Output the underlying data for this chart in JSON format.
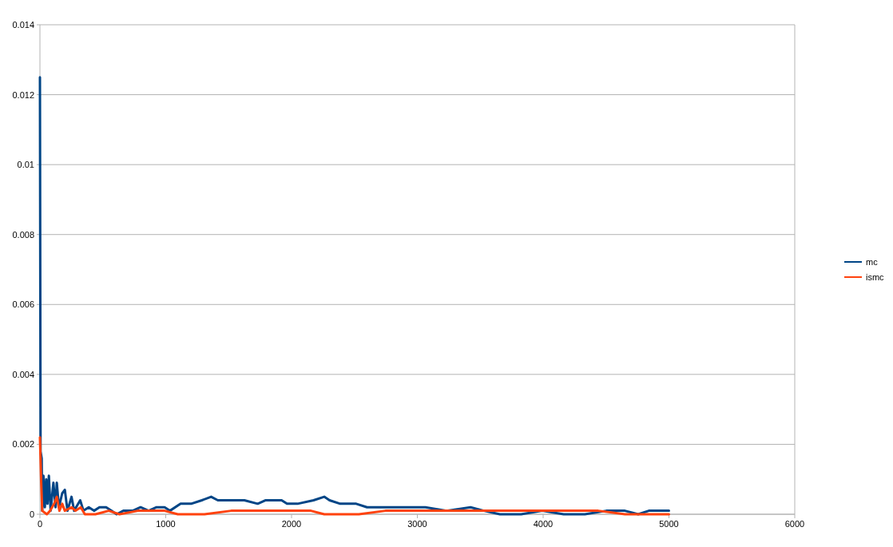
{
  "chart_data": {
    "type": "line",
    "xlim": [
      0,
      6000
    ],
    "xticks": [
      0,
      1000,
      2000,
      3000,
      4000,
      5000,
      6000
    ],
    "ylim": [
      0,
      0.014
    ],
    "yticks": [
      0,
      0.002,
      0.004,
      0.006,
      0.008,
      0.01,
      0.012,
      0.014
    ],
    "grid": "y",
    "legend": "right",
    "marker": "none",
    "line_style": "solid",
    "series": [
      {
        "name": "mc",
        "color": "#004586",
        "x": [
          0,
          5,
          14,
          18,
          28,
          39,
          50,
          60,
          71,
          85,
          107,
          124,
          134,
          151,
          177,
          198,
          219,
          251,
          272,
          320,
          346,
          388,
          430,
          473,
          526,
          568,
          610,
          663,
          737,
          800,
          864,
          927,
          991,
          1033,
          1118,
          1202,
          1287,
          1361,
          1414,
          1520,
          1625,
          1731,
          1795,
          1921,
          1964,
          2048,
          2175,
          2260,
          2302,
          2387,
          2514,
          2600,
          2768,
          2937,
          3064,
          3233,
          3423,
          3529,
          3656,
          3825,
          3993,
          4163,
          4332,
          4502,
          4650,
          4756,
          4840,
          5000
        ],
        "values": [
          0.0125,
          0.0018,
          0.0016,
          0.0001,
          0.0011,
          0.0002,
          0.001,
          0.0003,
          0.0011,
          0.0001,
          0.0009,
          0.0002,
          0.0009,
          0.0002,
          0.0006,
          0.0007,
          0.0001,
          0.0005,
          0.0001,
          0.0004,
          0.0001,
          0.0002,
          0.0001,
          0.0002,
          0.0002,
          0.0001,
          0,
          0.0001,
          0.0001,
          0.0002,
          0.0001,
          0.0002,
          0.0002,
          0.0001,
          0.0003,
          0.0003,
          0.0004,
          0.0005,
          0.0004,
          0.0004,
          0.0004,
          0.0003,
          0.0004,
          0.0004,
          0.0003,
          0.0003,
          0.0004,
          0.0005,
          0.0004,
          0.0003,
          0.0003,
          0.0002,
          0.0002,
          0.0002,
          0.0002,
          0.0001,
          0.0002,
          0.0001,
          0,
          0,
          0.0001,
          0,
          0,
          0.0001,
          0.0001,
          0,
          0.0001,
          0.0001
        ]
      },
      {
        "name": "ismc",
        "color": "#ff420e",
        "x": [
          0,
          10,
          18,
          55,
          81,
          113,
          134,
          155,
          177,
          198,
          251,
          283,
          325,
          357,
          441,
          547,
          632,
          779,
          885,
          991,
          1096,
          1308,
          1520,
          1731,
          1942,
          2154,
          2260,
          2345,
          2535,
          2746,
          2958,
          3169,
          3381,
          3593,
          3804,
          4014,
          4226,
          4438,
          4650,
          4861,
          5000
        ],
        "values": [
          0.0022,
          0.0009,
          0.0001,
          0,
          0.0001,
          0.0003,
          0.0005,
          0.0001,
          0.0003,
          0.0001,
          0.0002,
          0.0001,
          0.0002,
          0,
          0,
          0.0001,
          0,
          0.0001,
          0.0001,
          0.0001,
          0,
          0,
          0.0001,
          0.0001,
          0.0001,
          0.0001,
          0,
          0,
          0,
          0.0001,
          0.0001,
          0.0001,
          0.0001,
          0.0001,
          0.0001,
          0.0001,
          0.0001,
          0.0001,
          0,
          0,
          0
        ]
      }
    ]
  }
}
